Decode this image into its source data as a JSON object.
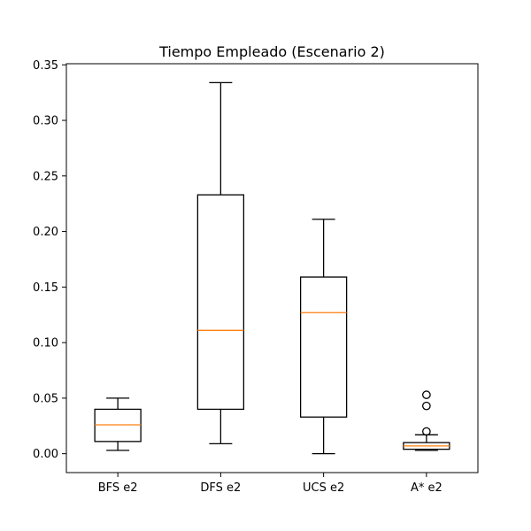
{
  "chart_data": {
    "type": "box",
    "title": "Tiempo Empleado (Escenario 2)",
    "xlabel": "",
    "ylabel": "",
    "ylim": [
      -0.017,
      0.351
    ],
    "yticks": [
      0.0,
      0.05,
      0.1,
      0.15,
      0.2,
      0.25,
      0.3,
      0.35
    ],
    "ytick_labels": [
      "0.00",
      "0.05",
      "0.10",
      "0.15",
      "0.20",
      "0.25",
      "0.30",
      "0.35"
    ],
    "grid": false,
    "categories": [
      "BFS e2",
      "DFS e2",
      "UCS e2",
      "A* e2"
    ],
    "boxes": [
      {
        "label": "BFS e2",
        "whisker_low": 0.003,
        "q1": 0.011,
        "median": 0.026,
        "q3": 0.04,
        "whisker_high": 0.05,
        "outliers": []
      },
      {
        "label": "DFS e2",
        "whisker_low": 0.009,
        "q1": 0.04,
        "median": 0.111,
        "q3": 0.233,
        "whisker_high": 0.334,
        "outliers": []
      },
      {
        "label": "UCS e2",
        "whisker_low": 0.0,
        "q1": 0.033,
        "median": 0.127,
        "q3": 0.159,
        "whisker_high": 0.211,
        "outliers": []
      },
      {
        "label": "A* e2",
        "whisker_low": 0.003,
        "q1": 0.004,
        "median": 0.007,
        "q3": 0.01,
        "whisker_high": 0.017,
        "outliers": [
          0.02,
          0.043,
          0.053
        ]
      }
    ],
    "colors": {
      "box": "#000000",
      "median": "#ff7f0e",
      "axes": "#000000",
      "outlier": "#000000"
    }
  }
}
